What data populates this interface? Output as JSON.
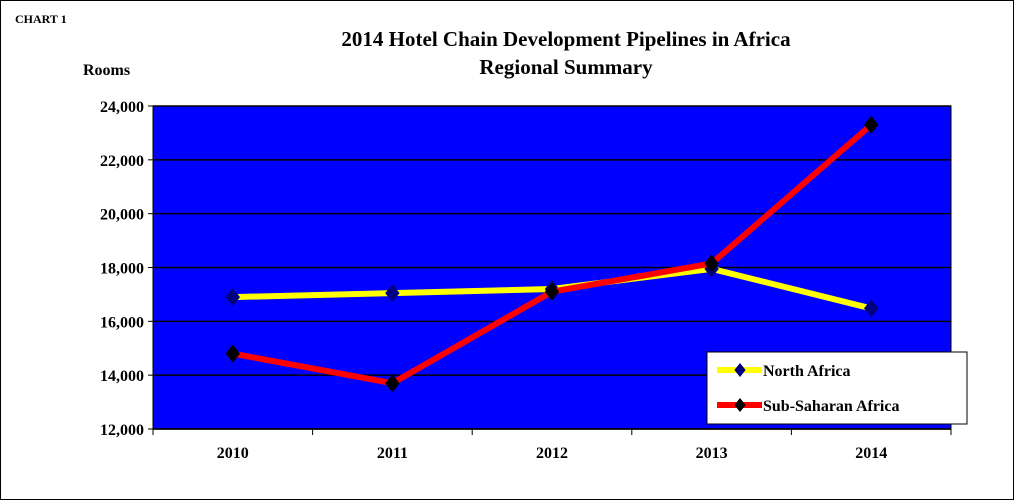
{
  "chart_data": {
    "type": "line",
    "tag": "CHART 1",
    "title": "2014 Hotel Chain Development Pipelines in Africa",
    "subtitle": "Regional Summary",
    "xlabel": "",
    "ylabel": "Rooms",
    "categories": [
      "2010",
      "2011",
      "2012",
      "2013",
      "2014"
    ],
    "ylim": [
      12000,
      24000
    ],
    "yticks": [
      "12,000",
      "14,000",
      "16,000",
      "18,000",
      "20,000",
      "22,000",
      "24,000"
    ],
    "grid": true,
    "plot_background": "#0000FF",
    "legend_position": "bottom-right",
    "series": [
      {
        "name": "North Africa",
        "values": [
          16900,
          17050,
          17200,
          17950,
          16480
        ],
        "color": "#FFFF00",
        "marker_color": "#000080"
      },
      {
        "name": "Sub-Saharan Africa",
        "values": [
          14800,
          13700,
          17100,
          18150,
          23300
        ],
        "color": "#FF0000",
        "marker_color": "#000000"
      }
    ]
  }
}
